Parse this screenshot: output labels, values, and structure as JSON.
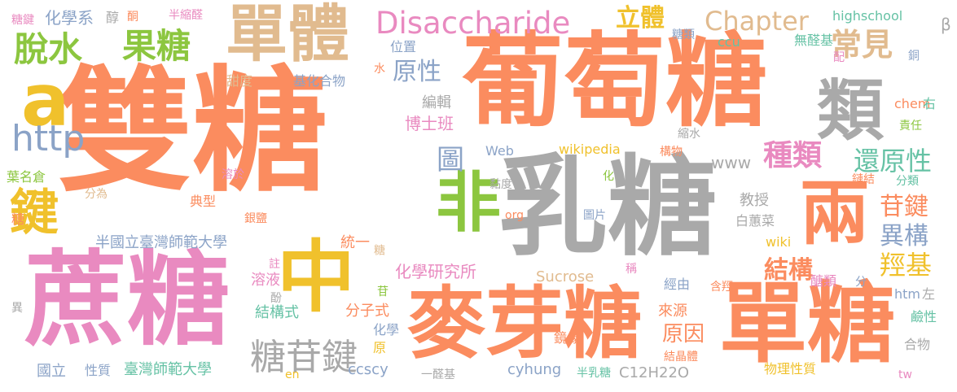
{
  "words": [
    {
      "text": "雙糖",
      "color": "#fb8c5f"
    },
    {
      "text": "葡萄糖",
      "color": "#fb8c5f"
    },
    {
      "text": "乳糖",
      "color": "#a9a9a9"
    },
    {
      "text": "蔗糖",
      "color": "#e98ac0"
    },
    {
      "text": "麥芽糖",
      "color": "#fb8c5f"
    },
    {
      "text": "單糖",
      "color": "#fb8c5f"
    },
    {
      "text": "中",
      "color": "#f0c12c"
    },
    {
      "text": "兩",
      "color": "#fb8c5f"
    },
    {
      "text": "單體",
      "color": "#e1bb8f"
    },
    {
      "text": "非",
      "color": "#8cc63f"
    },
    {
      "text": "類",
      "color": "#a9a9a9"
    },
    {
      "text": "鍵",
      "color": "#f0c12c"
    },
    {
      "text": "a",
      "color": "#f0c12c"
    },
    {
      "text": "Disaccharide",
      "color": "#e98ac0"
    },
    {
      "text": "http",
      "color": "#8ba3c7"
    },
    {
      "text": "果糖",
      "color": "#8cc63f"
    },
    {
      "text": "脫水",
      "color": "#8cc63f"
    },
    {
      "text": "常見",
      "color": "#e1bb8f"
    },
    {
      "text": "Chapter",
      "color": "#e1bb8f"
    },
    {
      "text": "立體",
      "color": "#f0c12c"
    },
    {
      "text": "原性",
      "color": "#8ba3c7"
    },
    {
      "text": "糖苷鍵",
      "color": "#a9a9a9"
    },
    {
      "text": "種類",
      "color": "#e98ac0"
    },
    {
      "text": "還原性",
      "color": "#66c2a5"
    },
    {
      "text": "苷鍵",
      "color": "#fb8c5f"
    },
    {
      "text": "異構",
      "color": "#8ba3c7"
    },
    {
      "text": "羥基",
      "color": "#f0c12c"
    },
    {
      "text": "結構",
      "color": "#fb8c5f"
    },
    {
      "text": "原因",
      "color": "#fb8c5f"
    },
    {
      "text": "圖",
      "color": "#8ba3c7"
    },
    {
      "text": "化學系",
      "color": "#8ba3c7"
    },
    {
      "text": "糖鍵",
      "color": "#e98ac0"
    },
    {
      "text": "醇",
      "color": "#a9a9a9"
    },
    {
      "text": "酮",
      "color": "#fb8c5f"
    },
    {
      "text": "半縮醛",
      "color": "#e98ac0"
    },
    {
      "text": "位置",
      "color": "#8ba3c7"
    },
    {
      "text": "水",
      "color": "#fb8c5f"
    },
    {
      "text": "甜度",
      "color": "#e1bb8f"
    },
    {
      "text": "基化合物",
      "color": "#8ba3c7"
    },
    {
      "text": "編輯",
      "color": "#a9a9a9"
    },
    {
      "text": "博士班",
      "color": "#e98ac0"
    },
    {
      "text": "highschool",
      "color": "#66c2a5"
    },
    {
      "text": "糖類",
      "color": "#8ba3c7"
    },
    {
      "text": "ccu",
      "color": "#66c2a5"
    },
    {
      "text": "無醛基",
      "color": "#66c2a5"
    },
    {
      "text": "配",
      "color": "#e98ac0"
    },
    {
      "text": "β",
      "color": "#a9a9a9"
    },
    {
      "text": "銅",
      "color": "#8ba3c7"
    },
    {
      "text": "chem",
      "color": "#fb8c5f"
    },
    {
      "text": "右",
      "color": "#66c2a5"
    },
    {
      "text": "責任",
      "color": "#8cc63f"
    },
    {
      "text": "縮水",
      "color": "#a9a9a9"
    },
    {
      "text": "Web",
      "color": "#8ba3c7"
    },
    {
      "text": "wikipedia",
      "color": "#f0c12c"
    },
    {
      "text": "構物",
      "color": "#fb8c5f"
    },
    {
      "text": "www",
      "color": "#a9a9a9"
    },
    {
      "text": "葉名倉",
      "color": "#8cc63f"
    },
    {
      "text": "溶於",
      "color": "#e98ac0"
    },
    {
      "text": "化",
      "color": "#8cc63f"
    },
    {
      "text": "黏度",
      "color": "#a9a9a9"
    },
    {
      "text": "分為",
      "color": "#e1bb8f"
    },
    {
      "text": "典型",
      "color": "#fb8c5f"
    },
    {
      "text": "教授",
      "color": "#a9a9a9"
    },
    {
      "text": "鏈結",
      "color": "#fb8c5f"
    },
    {
      "text": "分類",
      "color": "#66c2a5"
    },
    {
      "text": "糖",
      "color": "#fb8c5f"
    },
    {
      "text": "銀鹽",
      "color": "#fb8c5f"
    },
    {
      "text": "org",
      "color": "#fb8c5f"
    },
    {
      "text": "圖片",
      "color": "#8ba3c7"
    },
    {
      "text": "白蕙菜",
      "color": "#a9a9a9"
    },
    {
      "text": "半國立臺灣師範大學",
      "color": "#8ba3c7"
    },
    {
      "text": "wiki",
      "color": "#f0c12c"
    },
    {
      "text": "統一",
      "color": "#fb8c5f"
    },
    {
      "text": "糖",
      "color": "#e1bb8f"
    },
    {
      "text": "註",
      "color": "#e98ac0"
    },
    {
      "text": "化學研究所",
      "color": "#e98ac0"
    },
    {
      "text": "Sucrose",
      "color": "#e1bb8f"
    },
    {
      "text": "稱",
      "color": "#e98ac0"
    },
    {
      "text": "醣類",
      "color": "#e98ac0"
    },
    {
      "text": "溶液",
      "color": "#e98ac0"
    },
    {
      "text": "經由",
      "color": "#8ba3c7"
    },
    {
      "text": "含羥",
      "color": "#fb8c5f"
    },
    {
      "text": "分",
      "color": "#8ba3c7"
    },
    {
      "text": "苷",
      "color": "#8cc63f"
    },
    {
      "text": "htm",
      "color": "#8ba3c7"
    },
    {
      "text": "左",
      "color": "#a9a9a9"
    },
    {
      "text": "異",
      "color": "#a9a9a9"
    },
    {
      "text": "酚",
      "color": "#a9a9a9"
    },
    {
      "text": "結構式",
      "color": "#66c2a5"
    },
    {
      "text": "分子式",
      "color": "#fb8c5f"
    },
    {
      "text": "來源",
      "color": "#fb8c5f"
    },
    {
      "text": "鹼性",
      "color": "#66c2a5"
    },
    {
      "text": "化學",
      "color": "#8ba3c7"
    },
    {
      "text": "原",
      "color": "#f0c12c"
    },
    {
      "text": "合物",
      "color": "#a9a9a9"
    },
    {
      "text": "鏡像",
      "color": "#fb8c5f"
    },
    {
      "text": "結晶體",
      "color": "#fb8c5f"
    },
    {
      "text": "ccscy",
      "color": "#8ba3c7"
    },
    {
      "text": "cyhung",
      "color": "#8ba3c7"
    },
    {
      "text": "半乳糖",
      "color": "#66c2a5"
    },
    {
      "text": "C12H22O",
      "color": "#a9a9a9"
    },
    {
      "text": "物理性質",
      "color": "#f0c12c"
    },
    {
      "text": "國立",
      "color": "#8ba3c7"
    },
    {
      "text": "性質",
      "color": "#8ba3c7"
    },
    {
      "text": "臺灣師範大學",
      "color": "#66c2a5"
    },
    {
      "text": "en",
      "color": "#f0c12c"
    },
    {
      "text": "一醛基",
      "color": "#a9a9a9"
    },
    {
      "text": "tw",
      "color": "#e98ac0"
    }
  ]
}
